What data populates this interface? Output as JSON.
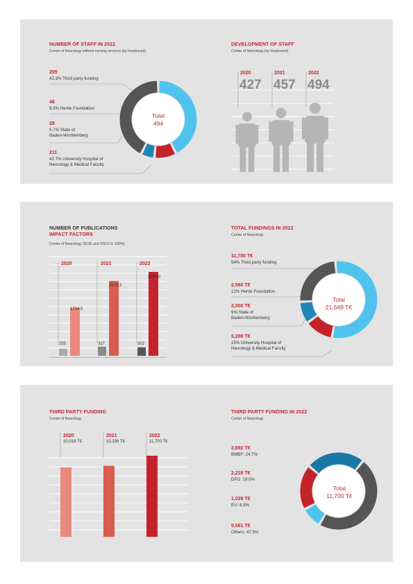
{
  "panel1": {
    "staff": {
      "title": "NUMBER OF STAFF IN 2022",
      "subtitle": "Center of Neurology without nursing services (by headcount)",
      "total_label": "Total",
      "total_value": "494",
      "items": [
        {
          "value": "209",
          "line1": "42.3% Third party funding",
          "line2": ""
        },
        {
          "value": "46",
          "line1": "9.3% Hertie Foundation",
          "line2": ""
        },
        {
          "value": "28",
          "line1": "5.7% State of",
          "line2": "Baden-Württemberg"
        },
        {
          "value": "211",
          "line1": "42.7% University Hospital of",
          "line2": "Neurology & Medical Faculty"
        }
      ]
    },
    "development": {
      "title": "DEVELOPMENT OF STAFF",
      "subtitle": "Center of Neurology (by headcount)",
      "years": [
        "2020",
        "2021",
        "2022"
      ],
      "values": [
        "427",
        "457",
        "494"
      ]
    }
  },
  "panel2": {
    "publications": {
      "title1": "NUMBER OF PUBLICATIONS",
      "title2": "IMPACT FACTORS",
      "subtitle": "Center of Neurology (SCIE and SSCI/ in 100%)",
      "years": [
        "2020",
        "2021",
        "2022"
      ],
      "pub_labels": [
        "255",
        "327",
        "302"
      ],
      "if_labels": [
        "1724.5",
        "2673.3",
        "3003.0"
      ]
    },
    "fundings": {
      "title": "TOTAL FUNDINGS IN 2022",
      "subtitle": "Center of Neurology",
      "total_label": "Total",
      "total_value": "21,569 T€",
      "items": [
        {
          "value": "11,700 T€",
          "line1": "54% Third party funding",
          "line2": ""
        },
        {
          "value": "2,580 T€",
          "line1": "12% Hertie Foundation",
          "line2": ""
        },
        {
          "value": "2,000 T€",
          "line1": "9% State of",
          "line2": "Baden-Württemberg"
        },
        {
          "value": "5,289 T€",
          "line1": "25% University Hospital of",
          "line2": "Neurology & Medical Faculty"
        }
      ]
    }
  },
  "panel3": {
    "third_party": {
      "title": "THIRD PARTY FUNDING",
      "subtitle": "Center of Neurology",
      "years": [
        "2020",
        "2021",
        "2022"
      ],
      "labels": [
        "10,018 T€",
        "10,238 T€",
        "11,700 T€"
      ]
    },
    "third_party_2022": {
      "title": "THIRD PARTY FUNDING IN 2022",
      "subtitle": "Center of Neurology",
      "total_label": "Total",
      "total_value": "11,700 T€",
      "items": [
        {
          "value": "2,892 T€",
          "line1": "BMBF: 24.7%"
        },
        {
          "value": "2,218 T€",
          "line1": "DFG: 19.0%"
        },
        {
          "value": "1,029 T€",
          "line1": "EU: 8.8%"
        },
        {
          "value": "5,561 T€",
          "line1": "Others: 47.5%"
        }
      ]
    }
  },
  "colors": {
    "panel_bg": "#e3e3e4",
    "red": "#c5232b",
    "cyan": "#4fc3ee",
    "blue": "#1e87b5",
    "teal": "#1878a6",
    "dark_grey": "#555555",
    "salmon": "#e8897d",
    "mid_red": "#d85c4f",
    "person_grey": "#b5b5b5"
  },
  "chart_data": [
    {
      "type": "pie",
      "title": "NUMBER OF STAFF IN 2022",
      "subtitle": "Center of Neurology without nursing services (by headcount)",
      "categories": [
        "Third party funding",
        "Hertie Foundation",
        "State of Baden-Württemberg",
        "University Hospital of Neurology & Medical Faculty"
      ],
      "values": [
        209,
        46,
        28,
        211
      ],
      "percent": [
        42.3,
        9.3,
        5.7,
        42.7
      ],
      "colors": [
        "#4fc3ee",
        "#c5232b",
        "#1e87b5",
        "#555555"
      ]
    },
    {
      "type": "bar",
      "title": "DEVELOPMENT OF STAFF",
      "categories": [
        "2020",
        "2021",
        "2022"
      ],
      "values": [
        427,
        457,
        494
      ]
    },
    {
      "type": "bar",
      "title": "NUMBER OF PUBLICATIONS / IMPACT FACTORS",
      "categories": [
        "2020",
        "2021",
        "2022"
      ],
      "series": [
        {
          "name": "NUMBER OF PUBLICATIONS",
          "values": [
            255,
            327,
            302
          ],
          "colors": [
            "#a8a8a8",
            "#8a8a8a",
            "#555555"
          ]
        },
        {
          "name": "IMPACT FACTORS",
          "values": [
            1724.5,
            2673.3,
            3003.0
          ],
          "colors": [
            "#e8897d",
            "#d85c4f",
            "#c5232b"
          ]
        }
      ],
      "ylim": [
        0,
        3300
      ]
    },
    {
      "type": "pie",
      "title": "TOTAL FUNDINGS IN 2022",
      "categories": [
        "Third party funding",
        "Hertie Foundation",
        "State of Baden-Württemberg",
        "University Hospital of Neurology & Medical Faculty"
      ],
      "values": [
        11700,
        2580,
        2000,
        5289
      ],
      "percent": [
        54,
        12,
        9,
        25
      ],
      "colors": [
        "#4fc3ee",
        "#c5232b",
        "#1e87b5",
        "#555555"
      ]
    },
    {
      "type": "bar",
      "title": "THIRD PARTY FUNDING",
      "categories": [
        "2020",
        "2021",
        "2022"
      ],
      "values": [
        10018,
        10238,
        11700
      ],
      "colors": [
        "#e8897d",
        "#d85c4f",
        "#c5232b"
      ],
      "ylim": [
        0,
        13500
      ]
    },
    {
      "type": "pie",
      "title": "THIRD PARTY FUNDING IN 2022",
      "categories": [
        "BMBF",
        "Others",
        "EU",
        "DFG"
      ],
      "values": [
        2892,
        5561,
        1029,
        2218
      ],
      "percent": [
        24.7,
        47.5,
        8.8,
        19.0
      ],
      "colors": [
        "#1878a6",
        "#555555",
        "#4fc3ee",
        "#c5232b"
      ]
    }
  ]
}
